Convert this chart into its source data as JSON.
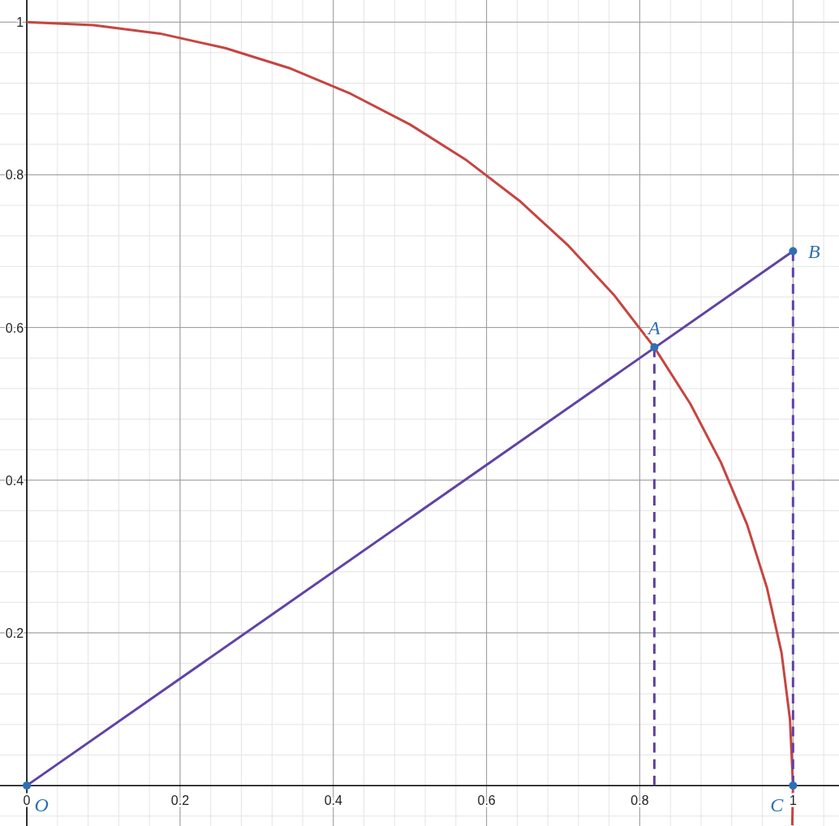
{
  "chart_data": {
    "type": "line",
    "xlim": [
      -0.035,
      1.06
    ],
    "ylim": [
      -0.053,
      1.029
    ],
    "xticks": [
      0,
      0.2,
      0.4,
      0.6,
      0.8,
      1
    ],
    "yticks": [
      0.2,
      0.4,
      0.6,
      0.8,
      1
    ],
    "grid": true,
    "series": [
      {
        "color": "#c74440",
        "x": [
          0,
          0.087,
          0.174,
          0.259,
          0.342,
          0.423,
          0.5,
          0.574,
          0.643,
          0.707,
          0.766,
          0.819,
          0.866,
          0.906,
          0.94,
          0.966,
          0.985,
          0.996,
          1,
          0.999
        ],
        "values": [
          1,
          0.996,
          0.985,
          0.966,
          0.94,
          0.906,
          0.866,
          0.819,
          0.766,
          0.707,
          0.643,
          0.574,
          0.5,
          0.423,
          0.342,
          0.259,
          0.174,
          0.087,
          0,
          -0.052
        ]
      },
      {
        "color": "#6042a6",
        "x": [
          0,
          1
        ],
        "values": [
          0,
          0.7
        ]
      },
      {
        "color": "#6042a6",
        "line_style": "dashed",
        "x": [
          0.819,
          0.819
        ],
        "values": [
          0.574,
          0
        ]
      },
      {
        "color": "#6042a6",
        "line_style": "dashed",
        "x": [
          1,
          1
        ],
        "values": [
          0.7,
          0
        ]
      },
      {
        "type": "scatter",
        "marker": "circle",
        "color": "#2d70b3",
        "x": [
          0,
          0.819,
          1,
          1
        ],
        "values": [
          0,
          0.574,
          0.7,
          0
        ]
      }
    ],
    "annotations": [
      {
        "text": "O",
        "x": 0,
        "y": 0
      },
      {
        "text": "A",
        "x": 0.819,
        "y": 0.574
      },
      {
        "text": "B",
        "x": 1,
        "y": 0.7
      },
      {
        "text": "C",
        "x": 1,
        "y": 0
      }
    ]
  }
}
